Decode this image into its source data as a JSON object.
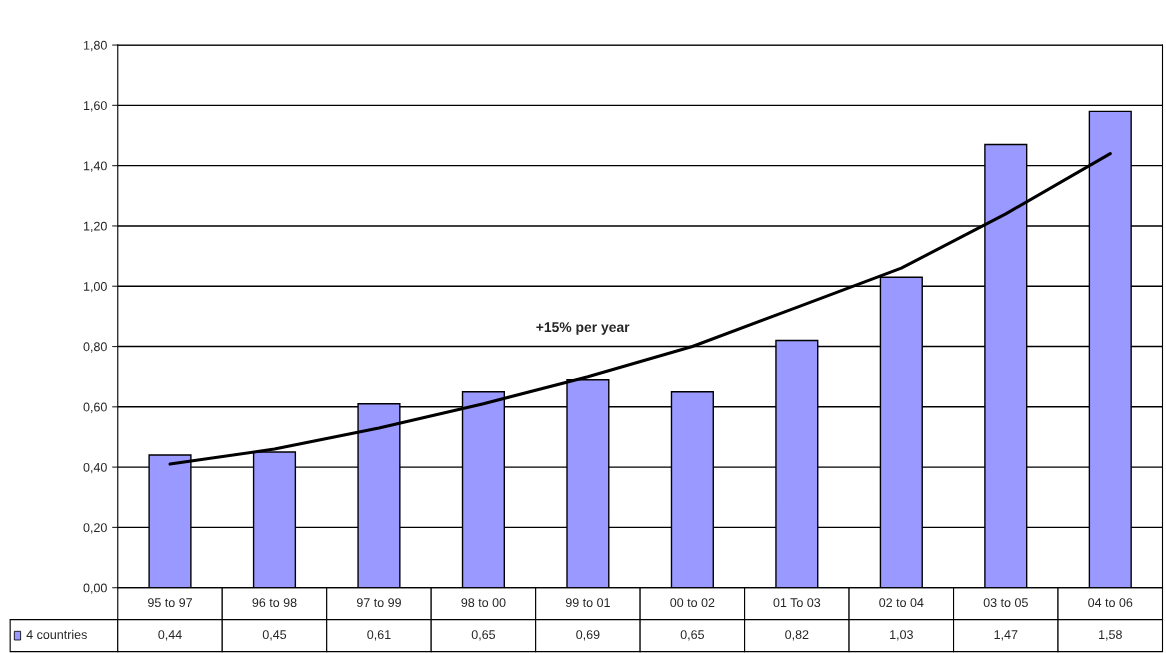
{
  "chart_data": {
    "type": "bar",
    "categories": [
      "95 to 97",
      "96 to 98",
      "97 to 99",
      "98 to 00",
      "99 to 01",
      "00 to 02",
      "01 To 03",
      "02 to 04",
      "03 to 05",
      "04 to 06"
    ],
    "series": [
      {
        "name": "4 countries",
        "color": "#9999ff",
        "values": [
          0.44,
          0.45,
          0.61,
          0.65,
          0.69,
          0.65,
          0.82,
          1.03,
          1.47,
          1.58
        ],
        "value_labels": [
          "0,44",
          "0,45",
          "0,61",
          "0,65",
          "0,69",
          "0,65",
          "0,82",
          "1,03",
          "1,47",
          "1,58"
        ]
      },
      {
        "type": "line",
        "color": "#000000",
        "values": [
          0.41,
          0.46,
          0.53,
          0.61,
          0.7,
          0.8,
          0.93,
          1.06,
          1.24,
          1.44
        ]
      }
    ],
    "ylim": [
      0,
      1.8
    ],
    "yticks": [
      {
        "value": 0,
        "label": "0,00"
      },
      {
        "value": 0.2,
        "label": "0,20"
      },
      {
        "value": 0.4,
        "label": "0,40"
      },
      {
        "value": 0.6,
        "label": "0,60"
      },
      {
        "value": 0.8,
        "label": "0,80"
      },
      {
        "value": 1.0,
        "label": "1,00"
      },
      {
        "value": 1.2,
        "label": "1,20"
      },
      {
        "value": 1.4,
        "label": "1,40"
      },
      {
        "value": 1.6,
        "label": "1,60"
      },
      {
        "value": 1.8,
        "label": "1,80"
      }
    ],
    "annotations": [
      "+15% per year"
    ],
    "grid": "y",
    "legend": "bottom left"
  }
}
